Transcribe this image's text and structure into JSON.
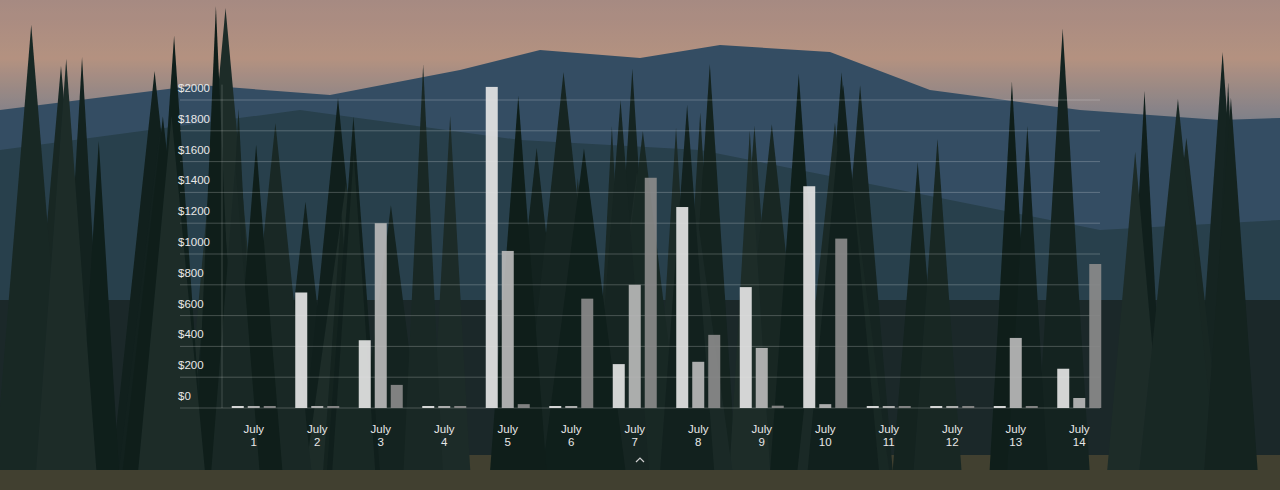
{
  "chart_data": {
    "type": "bar",
    "categories": [
      "July 1",
      "July 2",
      "July 3",
      "July 4",
      "July 5",
      "July 6",
      "July 7",
      "July 8",
      "July 9",
      "July 10",
      "July 11",
      "July 12",
      "July 13",
      "July 14"
    ],
    "series": [
      {
        "color": "#e4e4e4",
        "values": [
          0,
          750,
          440,
          0,
          2085,
          0,
          285,
          1305,
          785,
          1440,
          0,
          0,
          0,
          255
        ]
      },
      {
        "color": "#b9b9b9",
        "values": [
          0,
          0,
          1200,
          0,
          1020,
          0,
          800,
          300,
          390,
          25,
          0,
          0,
          455,
          65
        ]
      },
      {
        "color": "#8a8a8a",
        "values": [
          0,
          0,
          150,
          0,
          25,
          710,
          1495,
          475,
          15,
          1100,
          0,
          0,
          0,
          935
        ]
      }
    ],
    "ylim": [
      0,
      2100
    ],
    "yticks": [
      {
        "value": 0,
        "label": "$0"
      },
      {
        "value": 200,
        "label": "$200"
      },
      {
        "value": 400,
        "label": "$400"
      },
      {
        "value": 600,
        "label": "$600"
      },
      {
        "value": 800,
        "label": "$800"
      },
      {
        "value": 1000,
        "label": "$1000"
      },
      {
        "value": 1200,
        "label": "$1200"
      },
      {
        "value": 1400,
        "label": "$1400"
      },
      {
        "value": 1600,
        "label": "$1600"
      },
      {
        "value": 1800,
        "label": "$1800"
      },
      {
        "value": 2000,
        "label": "$2000"
      }
    ],
    "grid": true
  }
}
